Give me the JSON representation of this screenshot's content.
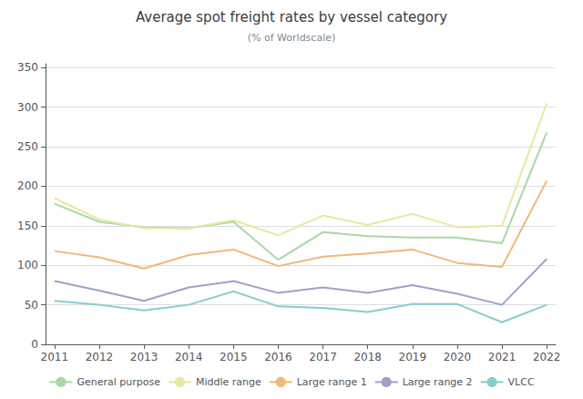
{
  "chart_data": {
    "type": "line",
    "title": "Average spot freight rates by vessel category",
    "subtitle": "(% of Worldscale)",
    "x": [
      2011,
      2012,
      2013,
      2014,
      2015,
      2016,
      2017,
      2018,
      2019,
      2020,
      2021,
      2022
    ],
    "series": [
      {
        "name": "General purpose",
        "color": "#a8d8a8",
        "values": [
          178,
          155,
          148,
          147,
          155,
          107,
          142,
          137,
          135,
          135,
          128,
          268
        ]
      },
      {
        "name": "Middle range",
        "color": "#e8e8a0",
        "values": [
          185,
          158,
          147,
          147,
          157,
          138,
          163,
          151,
          165,
          148,
          150,
          305
        ]
      },
      {
        "name": "Large range 1",
        "color": "#f0b87a",
        "values": [
          118,
          110,
          96,
          113,
          120,
          99,
          111,
          115,
          120,
          103,
          98,
          207
        ]
      },
      {
        "name": "Large range 2",
        "color": "#a0a0cc",
        "values": [
          80,
          68,
          55,
          72,
          80,
          65,
          72,
          65,
          75,
          64,
          50,
          108
        ]
      },
      {
        "name": "VLCC",
        "color": "#88cccc",
        "values": [
          55,
          50,
          43,
          50,
          67,
          48,
          46,
          41,
          51,
          51,
          28,
          50
        ]
      }
    ],
    "xlim": [
      2010.8,
      2022.2
    ],
    "xticks": [
      2011,
      2012,
      2013,
      2014,
      2015,
      2016,
      2017,
      2018,
      2019,
      2020,
      2021,
      2022
    ],
    "ylim": [
      0,
      355
    ],
    "yticks": [
      0,
      50,
      100,
      150,
      200,
      250,
      300,
      350
    ],
    "grid": true,
    "legend": "bottom"
  }
}
